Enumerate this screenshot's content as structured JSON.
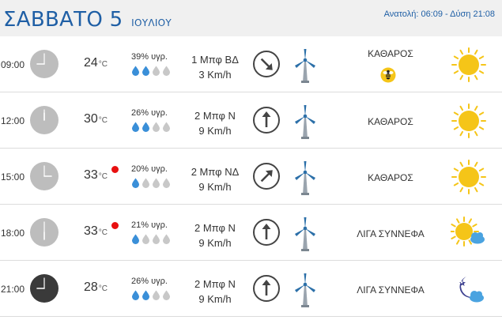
{
  "header": {
    "day": "ΣΑΒΒΑΤΟ 5",
    "month": "ΙΟΥΛΙΟΥ",
    "sun_times": "Ανατολή: 06:09 - Δύση 21:08"
  },
  "rows": [
    {
      "time": "09:00",
      "temp": "24",
      "temp_unit": "°C",
      "alert": false,
      "humidity": "39% υγρ.",
      "humidity_level": 2,
      "wind_force": "1 Μπφ ΒΔ",
      "wind_speed": "3 Km/h",
      "wind_arrow": "arrow-down-right",
      "condition": "ΚΑΘΑΡΟΣ",
      "extra_icon": "bee-icon",
      "weather_icon": "sun-icon"
    },
    {
      "time": "12:00",
      "temp": "30",
      "temp_unit": "°C",
      "alert": false,
      "humidity": "26% υγρ.",
      "humidity_level": 2,
      "wind_force": "2 Μπφ Ν",
      "wind_speed": "9 Km/h",
      "wind_arrow": "arrow-up",
      "condition": "ΚΑΘΑΡΟΣ",
      "weather_icon": "sun-icon"
    },
    {
      "time": "15:00",
      "temp": "33",
      "temp_unit": "°C",
      "alert": true,
      "humidity": "20% υγρ.",
      "humidity_level": 1,
      "wind_force": "2 Μπφ ΝΔ",
      "wind_speed": "9 Km/h",
      "wind_arrow": "arrow-up-right",
      "condition": "ΚΑΘΑΡΟΣ",
      "weather_icon": "sun-icon"
    },
    {
      "time": "18:00",
      "temp": "33",
      "temp_unit": "°C",
      "alert": true,
      "humidity": "21% υγρ.",
      "humidity_level": 1,
      "wind_force": "2 Μπφ Ν",
      "wind_speed": "9 Km/h",
      "wind_arrow": "arrow-up",
      "condition": "ΛΙΓΑ ΣΥΝΝΕΦΑ",
      "weather_icon": "sun-cloud-icon"
    },
    {
      "time": "21:00",
      "temp": "28",
      "temp_unit": "°C",
      "alert": false,
      "humidity": "26% υγρ.",
      "humidity_level": 2,
      "wind_force": "2 Μπφ Ν",
      "wind_speed": "9 Km/h",
      "wind_arrow": "arrow-up",
      "condition": "ΛΙΓΑ ΣΥΝΝΕΦΑ",
      "weather_icon": "moon-cloud-icon"
    }
  ],
  "colors": {
    "title_blue": "#1f5fa5",
    "drop_filled": "#3a8fd8",
    "drop_empty": "#c8c8c8",
    "sun": "#f5c518",
    "alert": "#e81010"
  }
}
